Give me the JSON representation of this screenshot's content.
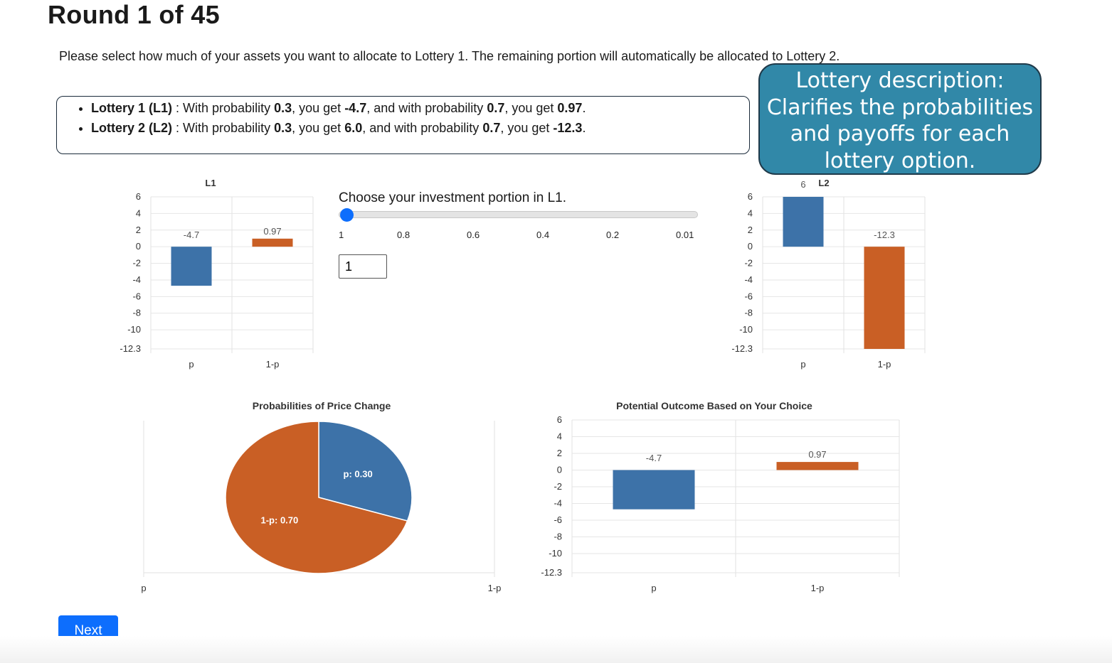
{
  "header": {
    "title": "Round 1 of 45"
  },
  "instructions": "Please select how much of your assets you want to allocate to Lottery 1. The remaining portion will automatically be allocated to Lottery 2.",
  "lotteries": [
    {
      "label": "Lottery 1 (L1)",
      "sep": " : ",
      "t1": "With probability ",
      "p": "0.3",
      "t2": ", you get ",
      "v1": "-4.7",
      "t3": ", and with probability ",
      "q": "0.7",
      "t4": ", you get ",
      "v2": "0.97",
      "t5": "."
    },
    {
      "label": "Lottery 2 (L2)",
      "sep": " : ",
      "t1": "With probability ",
      "p": "0.3",
      "t2": ", you get ",
      "v1": "6.0",
      "t3": ", and with probability ",
      "q": "0.7",
      "t4": ", you get ",
      "v2": "-12.3",
      "t5": "."
    }
  ],
  "callout": {
    "lines": [
      "Lottery description:",
      "Clarifies the probabilities",
      "and payoffs for each",
      "lottery option."
    ],
    "color": "#3188a8"
  },
  "slider": {
    "label": "Choose your investment portion in L1.",
    "ticks": [
      "1",
      "0.8",
      "0.6",
      "0.4",
      "0.2",
      "0.01"
    ],
    "value": 1,
    "input_value": "1",
    "thumb_color": "#0d6efd"
  },
  "next_button": {
    "label": "Next"
  },
  "colors": {
    "p": "#3d72a8",
    "one_minus_p": "#c95f25"
  },
  "chart_data": [
    {
      "id": "l1",
      "type": "bar",
      "title": "L1",
      "categories": [
        "p",
        "1-p"
      ],
      "values": [
        -4.7,
        0.97
      ],
      "value_labels": [
        "-4.7",
        "0.97"
      ],
      "yticks": [
        "6",
        "4",
        "2",
        "0",
        "-2",
        "-4",
        "-6",
        "-8",
        "-10",
        "-12.3"
      ],
      "ylim": [
        -12.3,
        6
      ],
      "grid": true
    },
    {
      "id": "l2",
      "type": "bar",
      "title": "L2",
      "categories": [
        "p",
        "1-p"
      ],
      "values": [
        6.0,
        -12.3
      ],
      "value_labels": [
        "6",
        "-12.3"
      ],
      "yticks": [
        "6",
        "4",
        "2",
        "0",
        "-2",
        "-4",
        "-6",
        "-8",
        "-10",
        "-12.3"
      ],
      "ylim": [
        -12.3,
        6
      ],
      "grid": true
    },
    {
      "id": "pie",
      "type": "pie",
      "title": "Probabilities of Price Change",
      "slices": [
        {
          "label": "p: 0.30",
          "value": 0.3
        },
        {
          "label": "1-p: 0.70",
          "value": 0.7
        }
      ],
      "axis_labels": [
        "p",
        "1-p"
      ]
    },
    {
      "id": "outcome",
      "type": "bar",
      "title": "Potential Outcome Based on Your Choice",
      "categories": [
        "p",
        "1-p"
      ],
      "values": [
        -4.7,
        0.97
      ],
      "value_labels": [
        "-4.7",
        "0.97"
      ],
      "yticks": [
        "6",
        "4",
        "2",
        "0",
        "-2",
        "-4",
        "-6",
        "-8",
        "-10",
        "-12.3"
      ],
      "ylim": [
        -12.3,
        6
      ],
      "grid": true
    }
  ]
}
